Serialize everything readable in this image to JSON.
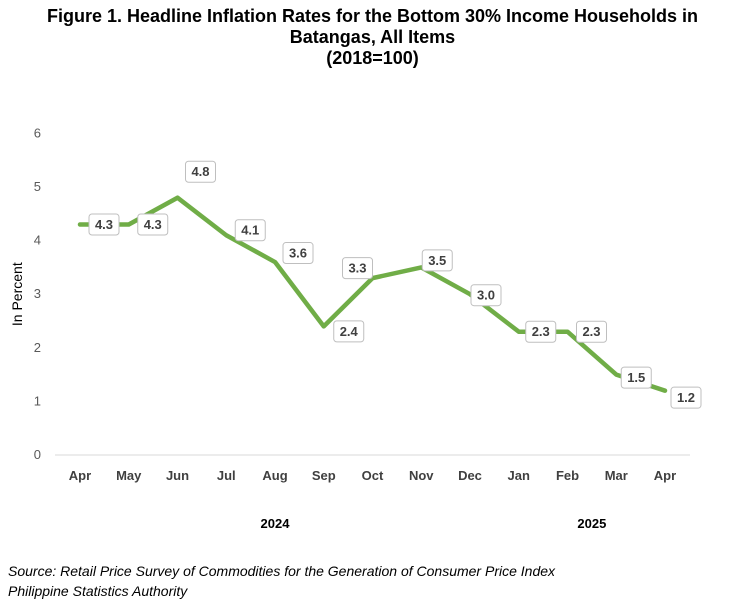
{
  "title": {
    "line1": "Figure 1. Headline Inflation Rates for the Bottom 30% Income Households in",
    "line2": "Batangas, All Items",
    "line3": "(2018=100)"
  },
  "source": {
    "line1": "Source: Retail Price Survey of Commodities for the Generation of Consumer Price Index",
    "line2": "Philippine Statistics Authority"
  },
  "chart_data": {
    "type": "line",
    "ylabel": "In Percent",
    "xlabel": "",
    "ylim": [
      0,
      6
    ],
    "yticks": [
      0,
      1,
      2,
      3,
      4,
      5,
      6
    ],
    "categories": [
      "Apr",
      "May",
      "Jun",
      "Jul",
      "Aug",
      "Sep",
      "Oct",
      "Nov",
      "Dec",
      "Jan",
      "Feb",
      "Mar",
      "Apr"
    ],
    "year_groups": [
      {
        "label": "2024",
        "from": 0,
        "to": 8
      },
      {
        "label": "2025",
        "from": 9,
        "to": 12
      }
    ],
    "series": [
      {
        "values": [
          4.3,
          4.3,
          4.8,
          4.1,
          3.6,
          2.4,
          3.3,
          3.5,
          3.0,
          2.3,
          2.3,
          1.5,
          1.2
        ],
        "color": "#70ad47"
      }
    ],
    "data_labels": [
      "4.3",
      "4.3",
      "4.8",
      "4.1",
      "3.6",
      "2.4",
      "3.3",
      "3.5",
      "3.0",
      "2.3",
      "2.3",
      "1.5",
      "1.2"
    ],
    "grid": false,
    "legend": "none"
  }
}
